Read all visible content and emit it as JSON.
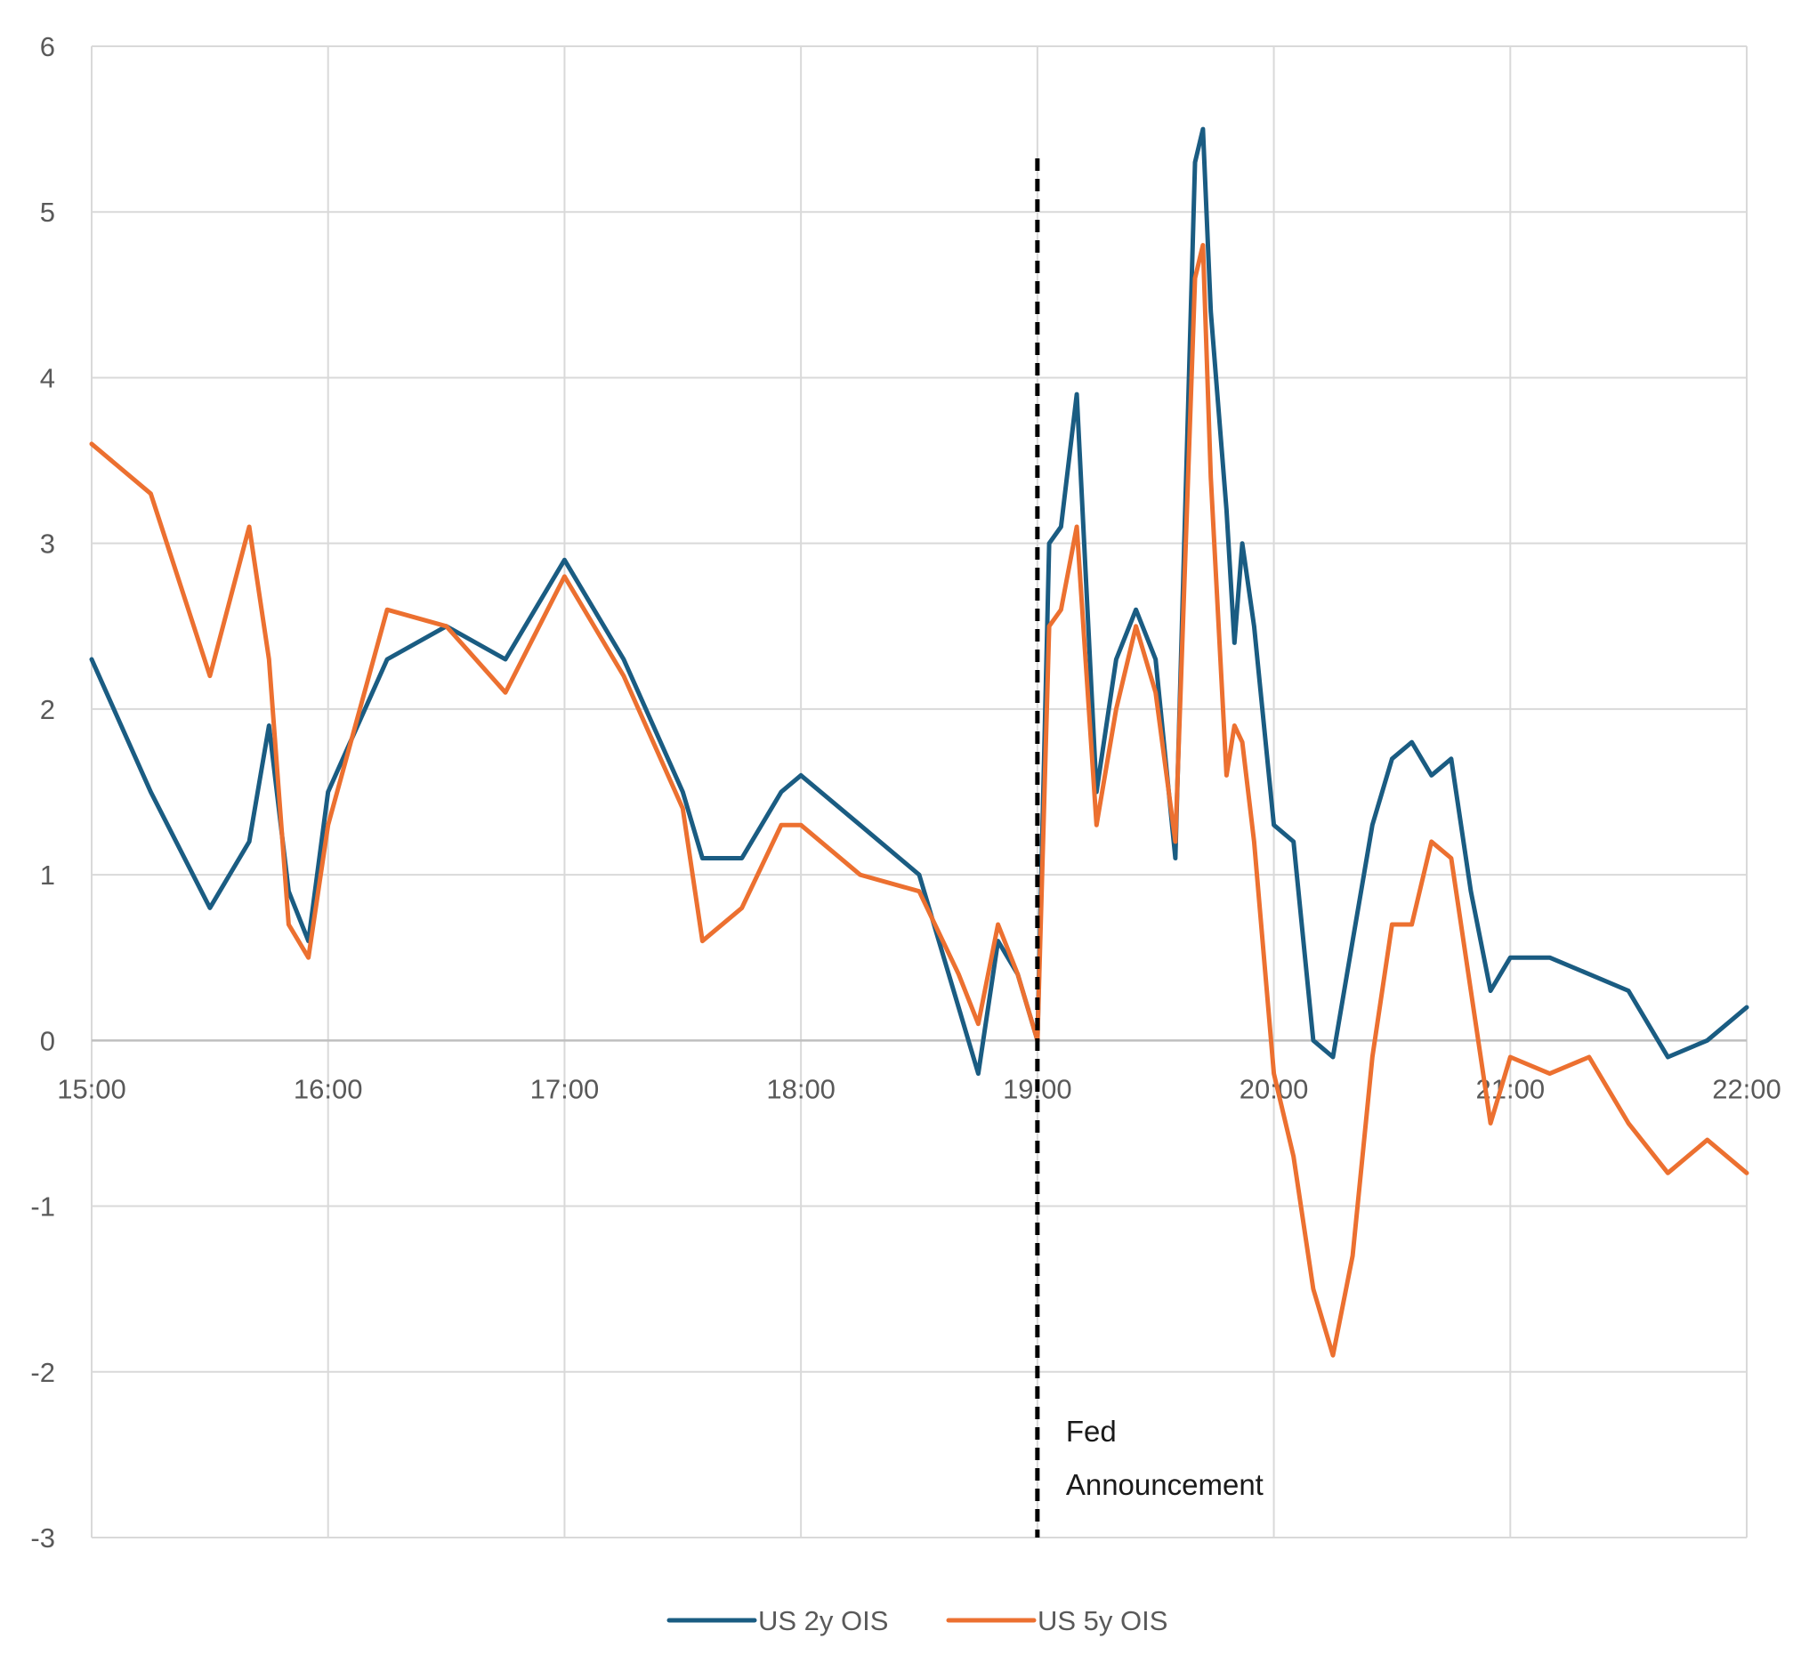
{
  "chart_data": {
    "type": "line",
    "title": "",
    "xlabel": "",
    "ylabel": "",
    "x_ticks": [
      "15:00",
      "16:00",
      "17:00",
      "18:00",
      "19:00",
      "20:00",
      "21:00",
      "22:00"
    ],
    "x_tick_minutes": [
      0,
      60,
      120,
      180,
      240,
      300,
      360,
      420
    ],
    "xlim_minutes": [
      0,
      420
    ],
    "ylim": [
      -3,
      6
    ],
    "y_ticks": [
      -3,
      -2,
      -1,
      0,
      1,
      2,
      3,
      4,
      5,
      6
    ],
    "grid": true,
    "legend_position": "bottom",
    "x": [
      "15:00",
      "15:15",
      "15:30",
      "15:40",
      "15:45",
      "15:50",
      "15:55",
      "16:00",
      "16:15",
      "16:30",
      "16:45",
      "17:00",
      "17:15",
      "17:30",
      "17:35",
      "17:45",
      "17:55",
      "18:00",
      "18:15",
      "18:30",
      "18:40",
      "18:45",
      "18:50",
      "18:55",
      "19:00",
      "19:03",
      "19:06",
      "19:10",
      "19:15",
      "19:20",
      "19:25",
      "19:30",
      "19:35",
      "19:40",
      "19:42",
      "19:44",
      "19:48",
      "19:50",
      "19:52",
      "19:55",
      "20:00",
      "20:05",
      "20:10",
      "20:15",
      "20:20",
      "20:25",
      "20:30",
      "20:35",
      "20:40",
      "20:45",
      "20:50",
      "20:55",
      "21:00",
      "21:10",
      "21:20",
      "21:30",
      "21:40",
      "21:50",
      "22:00"
    ],
    "series": [
      {
        "name": "US 2y OIS",
        "color": "#1a5c82",
        "values": [
          2.3,
          1.5,
          0.8,
          1.2,
          1.9,
          0.9,
          0.6,
          1.5,
          2.3,
          2.5,
          2.3,
          2.9,
          2.3,
          1.5,
          1.1,
          1.1,
          1.5,
          1.6,
          1.3,
          1.0,
          0.2,
          -0.2,
          0.6,
          0.4,
          0.0,
          3.0,
          3.1,
          3.9,
          1.5,
          2.3,
          2.6,
          2.3,
          1.1,
          5.3,
          5.5,
          4.4,
          3.2,
          2.4,
          3.0,
          2.5,
          1.3,
          1.2,
          0.0,
          -0.1,
          0.6,
          1.3,
          1.7,
          1.8,
          1.6,
          1.7,
          0.9,
          0.3,
          0.5,
          0.5,
          0.4,
          0.3,
          -0.1,
          0.0,
          0.2
        ]
      },
      {
        "name": "US 5y OIS",
        "color": "#ec7030",
        "values": [
          3.6,
          3.3,
          2.2,
          3.1,
          2.3,
          0.7,
          0.5,
          1.3,
          2.6,
          2.5,
          2.1,
          2.8,
          2.2,
          1.4,
          0.6,
          0.8,
          1.3,
          1.3,
          1.0,
          0.9,
          0.4,
          0.1,
          0.7,
          0.4,
          0.0,
          2.5,
          2.6,
          3.1,
          1.3,
          2.0,
          2.5,
          2.1,
          1.2,
          4.6,
          4.8,
          3.4,
          1.6,
          1.9,
          1.8,
          1.2,
          -0.2,
          -0.7,
          -1.5,
          -1.9,
          -1.3,
          -0.1,
          0.7,
          0.7,
          1.2,
          1.1,
          0.3,
          -0.5,
          -0.1,
          -0.2,
          -0.1,
          -0.5,
          -0.8,
          -0.6,
          -0.8
        ]
      }
    ],
    "annotation": {
      "x": "19:00",
      "line1": "Fed",
      "line2": "Announcement"
    }
  }
}
